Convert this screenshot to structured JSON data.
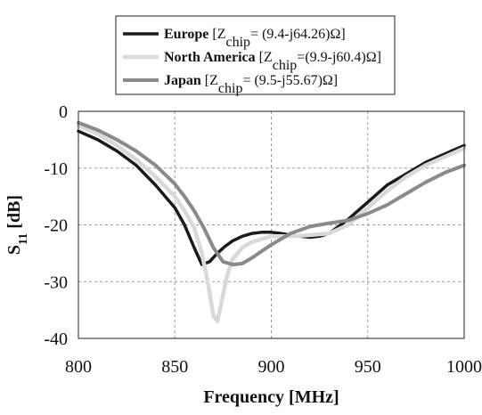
{
  "chart_data": {
    "type": "line",
    "xlabel": "Frequency [MHz]",
    "ylabel": "S11 [dB]",
    "ylabel_parts": {
      "main": "S",
      "sub": "11",
      "rest": " [dB]"
    },
    "xlim": [
      800,
      1000
    ],
    "ylim": [
      -40,
      0
    ],
    "x_ticks": [
      800,
      850,
      900,
      950,
      1000
    ],
    "y_ticks": [
      0,
      -10,
      -20,
      -30,
      -40
    ],
    "x_tick_labels": [
      "800",
      "850",
      "900",
      "950",
      "1000"
    ],
    "y_tick_labels": [
      "0",
      "-10",
      "-20",
      "-30",
      "-40"
    ],
    "grid": true,
    "grid_style": "dashed",
    "legend_position": "top-center",
    "series": [
      {
        "name": "Europe",
        "legend_bracket": "[",
        "legend_z": "Z",
        "legend_sub": "chip",
        "legend_value": "= (9.4-j64.26)Ω]",
        "color": "#1a1a1a",
        "x": [
          800,
          810,
          820,
          830,
          840,
          850,
          855,
          860,
          864,
          868,
          872,
          876,
          880,
          885,
          890,
          895,
          900,
          905,
          910,
          915,
          920,
          925,
          930,
          940,
          950,
          960,
          970,
          980,
          990,
          1000
        ],
        "y": [
          -3.5,
          -5,
          -7,
          -9.5,
          -13,
          -17,
          -20,
          -24,
          -27,
          -26.5,
          -25,
          -23.8,
          -22.8,
          -22,
          -21.5,
          -21.3,
          -21.3,
          -21.5,
          -21.8,
          -22,
          -22.2,
          -22,
          -21.5,
          -19,
          -16,
          -13,
          -11,
          -9,
          -7.5,
          -6
        ]
      },
      {
        "name": "North America",
        "legend_bracket": "[",
        "legend_z": "Z",
        "legend_sub": "chip",
        "legend_value": "=(9.9-j60.4)Ω]",
        "color": "#d9d9d9",
        "x": [
          800,
          810,
          820,
          830,
          840,
          850,
          855,
          860,
          864,
          867,
          870,
          872,
          874,
          877,
          880,
          885,
          890,
          900,
          910,
          920,
          930,
          940,
          950,
          960,
          970,
          980,
          990,
          1000
        ],
        "y": [
          -2.5,
          -4,
          -6,
          -8.5,
          -11.5,
          -15,
          -17.5,
          -20.5,
          -25,
          -30,
          -36,
          -37,
          -34,
          -29,
          -26,
          -24,
          -23,
          -22,
          -22,
          -21.8,
          -21.5,
          -20,
          -17,
          -14,
          -11.5,
          -9.5,
          -8,
          -6.5
        ]
      },
      {
        "name": "Japan",
        "legend_bracket": "[",
        "legend_z": "Z",
        "legend_sub": "chip",
        "legend_value": "= (9.5-j55.67)Ω]",
        "color": "#8a8a8a",
        "x": [
          800,
          810,
          820,
          830,
          840,
          850,
          855,
          860,
          865,
          870,
          875,
          880,
          885,
          890,
          900,
          910,
          920,
          930,
          940,
          950,
          960,
          970,
          980,
          990,
          1000
        ],
        "y": [
          -2,
          -3.3,
          -5,
          -7,
          -9.5,
          -12.8,
          -15,
          -17.5,
          -20.5,
          -24,
          -26.5,
          -27,
          -26.8,
          -25.8,
          -23.5,
          -21.5,
          -20.3,
          -19.7,
          -19.2,
          -18,
          -16.5,
          -14.5,
          -12.5,
          -10.8,
          -9.5
        ]
      }
    ]
  }
}
